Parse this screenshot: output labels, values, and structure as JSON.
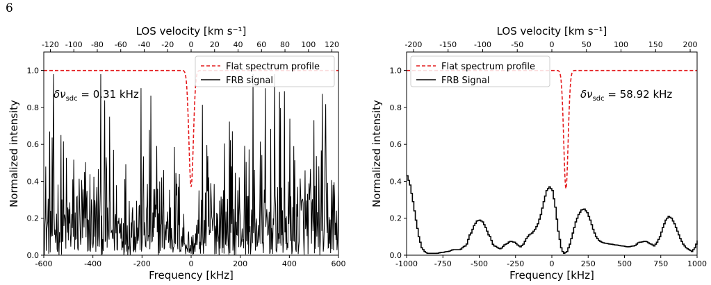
{
  "page_number": "6",
  "chart_data": [
    {
      "type": "line",
      "xlabel": "Frequency [kHz]",
      "ylabel": "Normalized intensity",
      "top_xlabel": "LOS velocity [km s⁻¹]",
      "xlim": [
        -600,
        600
      ],
      "ylim": [
        0,
        1.1
      ],
      "x_ticks": [
        -600,
        -400,
        -200,
        0,
        200,
        400,
        600
      ],
      "y_ticks": [
        "0.0",
        "0.2",
        "0.4",
        "0.6",
        "0.8",
        "1.0"
      ],
      "top_ticks": [
        -120,
        -100,
        -80,
        -60,
        -40,
        -20,
        0,
        20,
        40,
        60,
        80,
        100,
        120
      ],
      "top_xlim": [
        -125.6,
        125.6
      ],
      "legend_position": "top-right",
      "annotation": {
        "prefix": "δν",
        "sub": "sdc",
        "suffix": " = 0.31 kHz"
      },
      "series": [
        {
          "name": "Flat spectrum profile",
          "color": "#e41a1c",
          "style": "dashed",
          "profile": {
            "baseline": 1.0,
            "depth": 0.63,
            "center": 0,
            "sigma": 9
          }
        },
        {
          "name": "FRB signal",
          "color": "#000000",
          "style": "solid",
          "noise": {
            "mean": 0.2,
            "max": 0.98,
            "n_points": 600,
            "dip_center": 0,
            "dip_width": 60
          }
        }
      ]
    },
    {
      "type": "line",
      "xlabel": "Frequency [kHz]",
      "ylabel": "Normalized intensity",
      "top_xlabel": "LOS velocity [km s⁻¹]",
      "xlim": [
        -1000,
        1000
      ],
      "ylim": [
        0,
        1.1
      ],
      "x_ticks": [
        -1000,
        -750,
        -500,
        -250,
        0,
        250,
        500,
        750,
        1000
      ],
      "y_ticks": [
        "0.0",
        "0.2",
        "0.4",
        "0.6",
        "0.8",
        "1.0"
      ],
      "top_ticks": [
        -200,
        -150,
        -100,
        -50,
        0,
        50,
        100,
        150,
        200
      ],
      "top_xlim": [
        -210,
        210
      ],
      "legend_position": "top-left",
      "annotation": {
        "prefix": "δν",
        "sub": "sdc",
        "suffix": " = 58.92 kHz"
      },
      "series": [
        {
          "name": "Flat spectrum profile",
          "color": "#e41a1c",
          "style": "dashed",
          "profile": {
            "baseline": 1.0,
            "depth": 0.64,
            "center": 97,
            "sigma": 15
          }
        },
        {
          "name": "FRB Signal",
          "color": "#000000",
          "style": "step",
          "x": [
            -1000,
            -980,
            -960,
            -940,
            -920,
            -900,
            -880,
            -860,
            -840,
            -800,
            -760,
            -720,
            -680,
            -640,
            -600,
            -560,
            -540,
            -520,
            -500,
            -480,
            -460,
            -440,
            -400,
            -360,
            -320,
            -290,
            -260,
            -240,
            -220,
            -200,
            -180,
            -160,
            -140,
            -120,
            -100,
            -80,
            -60,
            -40,
            -20,
            0,
            20,
            40,
            60,
            70,
            80,
            100,
            120,
            140,
            160,
            180,
            200,
            220,
            240,
            260,
            280,
            300,
            320,
            340,
            360,
            400,
            440,
            480,
            520,
            560,
            600,
            640,
            680,
            700,
            720,
            740,
            760,
            780,
            800,
            820,
            840,
            860,
            880,
            900,
            920,
            940,
            960,
            980,
            1000
          ],
          "y": [
            0.43,
            0.38,
            0.29,
            0.19,
            0.1,
            0.04,
            0.02,
            0.01,
            0.01,
            0.01,
            0.015,
            0.02,
            0.03,
            0.03,
            0.05,
            0.12,
            0.16,
            0.185,
            0.19,
            0.18,
            0.15,
            0.11,
            0.05,
            0.035,
            0.06,
            0.075,
            0.07,
            0.055,
            0.045,
            0.06,
            0.09,
            0.11,
            0.12,
            0.14,
            0.17,
            0.22,
            0.29,
            0.35,
            0.37,
            0.35,
            0.26,
            0.13,
            0.04,
            0.02,
            0.01,
            0.02,
            0.06,
            0.12,
            0.18,
            0.22,
            0.245,
            0.25,
            0.23,
            0.19,
            0.14,
            0.1,
            0.08,
            0.07,
            0.065,
            0.06,
            0.055,
            0.05,
            0.045,
            0.05,
            0.07,
            0.075,
            0.06,
            0.05,
            0.07,
            0.1,
            0.15,
            0.19,
            0.21,
            0.2,
            0.17,
            0.13,
            0.09,
            0.06,
            0.04,
            0.03,
            0.02,
            0.04,
            0.08
          ]
        }
      ]
    }
  ]
}
